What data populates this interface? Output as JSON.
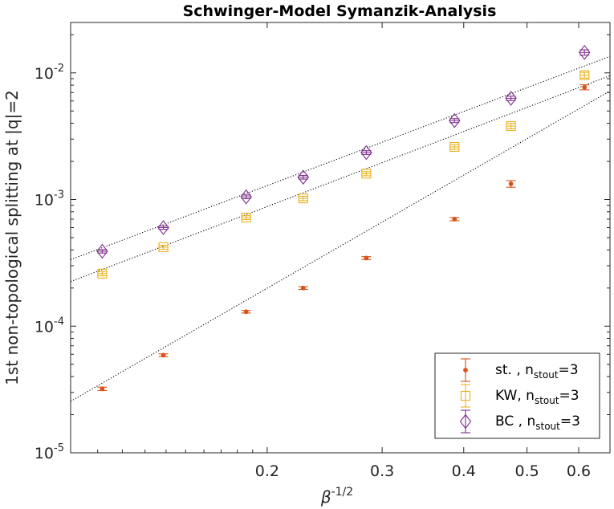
{
  "chart_data": {
    "type": "scatter",
    "title": "Schwinger-Model Symanzik-Analysis",
    "xlabel": "β",
    "xlabel_sup": "-1/2",
    "ylabel": "1st non-topological splitting at |q|=2",
    "xscale": "log",
    "yscale": "log",
    "xlim": [
      0.1,
      0.67
    ],
    "ylim": [
      1e-05,
      0.025
    ],
    "x_ticks": [
      {
        "value": 0.2,
        "label": "0.2"
      },
      {
        "value": 0.3,
        "label": "0.3"
      },
      {
        "value": 0.4,
        "label": "0.4"
      },
      {
        "value": 0.5,
        "label": "0.5"
      },
      {
        "value": 0.6,
        "label": "0.6"
      }
    ],
    "y_ticks": [
      {
        "value": 1e-05,
        "base": "10",
        "exp": "-5"
      },
      {
        "value": 0.0001,
        "base": "10",
        "exp": "-4"
      },
      {
        "value": 0.001,
        "base": "10",
        "exp": "-3"
      },
      {
        "value": 0.01,
        "base": "10",
        "exp": "-2"
      }
    ],
    "legend_position": "bottom-right",
    "x": [
      0.1118,
      0.1387,
      0.1857,
      0.2271,
      0.2837,
      0.3872,
      0.4725,
      0.6124
    ],
    "series": [
      {
        "legend_prefix": "st. , n",
        "legend_sub": "stout",
        "legend_suffix": "=3",
        "marker": "dot",
        "color": "#d95319",
        "values": [
          3.2e-05,
          5.9e-05,
          0.00013,
          0.0002,
          0.000345,
          0.0007,
          0.00133,
          0.0077
        ],
        "errors": [
          1e-06,
          1.5e-06,
          3e-06,
          5e-06,
          9e-06,
          2e-05,
          8e-05,
          0.00035
        ],
        "fit": [
          2.55e-05,
          0.0072
        ]
      },
      {
        "legend_prefix": "KW, n",
        "legend_sub": "stout",
        "legend_suffix": "=3",
        "marker": "square",
        "color": "#edb120",
        "values": [
          0.00026,
          0.00042,
          0.00072,
          0.00102,
          0.0016,
          0.0026,
          0.0038,
          0.0096
        ],
        "errors": [
          1e-05,
          1.5e-05,
          2.5e-05,
          4e-05,
          6e-05,
          0.00011,
          0.00018,
          0.0005
        ],
        "fit": [
          0.000225,
          0.0095
        ]
      },
      {
        "legend_prefix": "BC , n",
        "legend_sub": "stout",
        "legend_suffix": "=3",
        "marker": "diamond",
        "color": "#7e2f8e",
        "values": [
          0.00039,
          0.0006,
          0.00105,
          0.0015,
          0.00235,
          0.0042,
          0.0063,
          0.0145
        ],
        "errors": [
          1.2e-05,
          1.8e-05,
          3.5e-05,
          5e-05,
          8e-05,
          0.00015,
          0.00025,
          0.0007
        ],
        "fit": [
          0.000335,
          0.0135
        ]
      }
    ],
    "fit_line_color": "#000000"
  }
}
